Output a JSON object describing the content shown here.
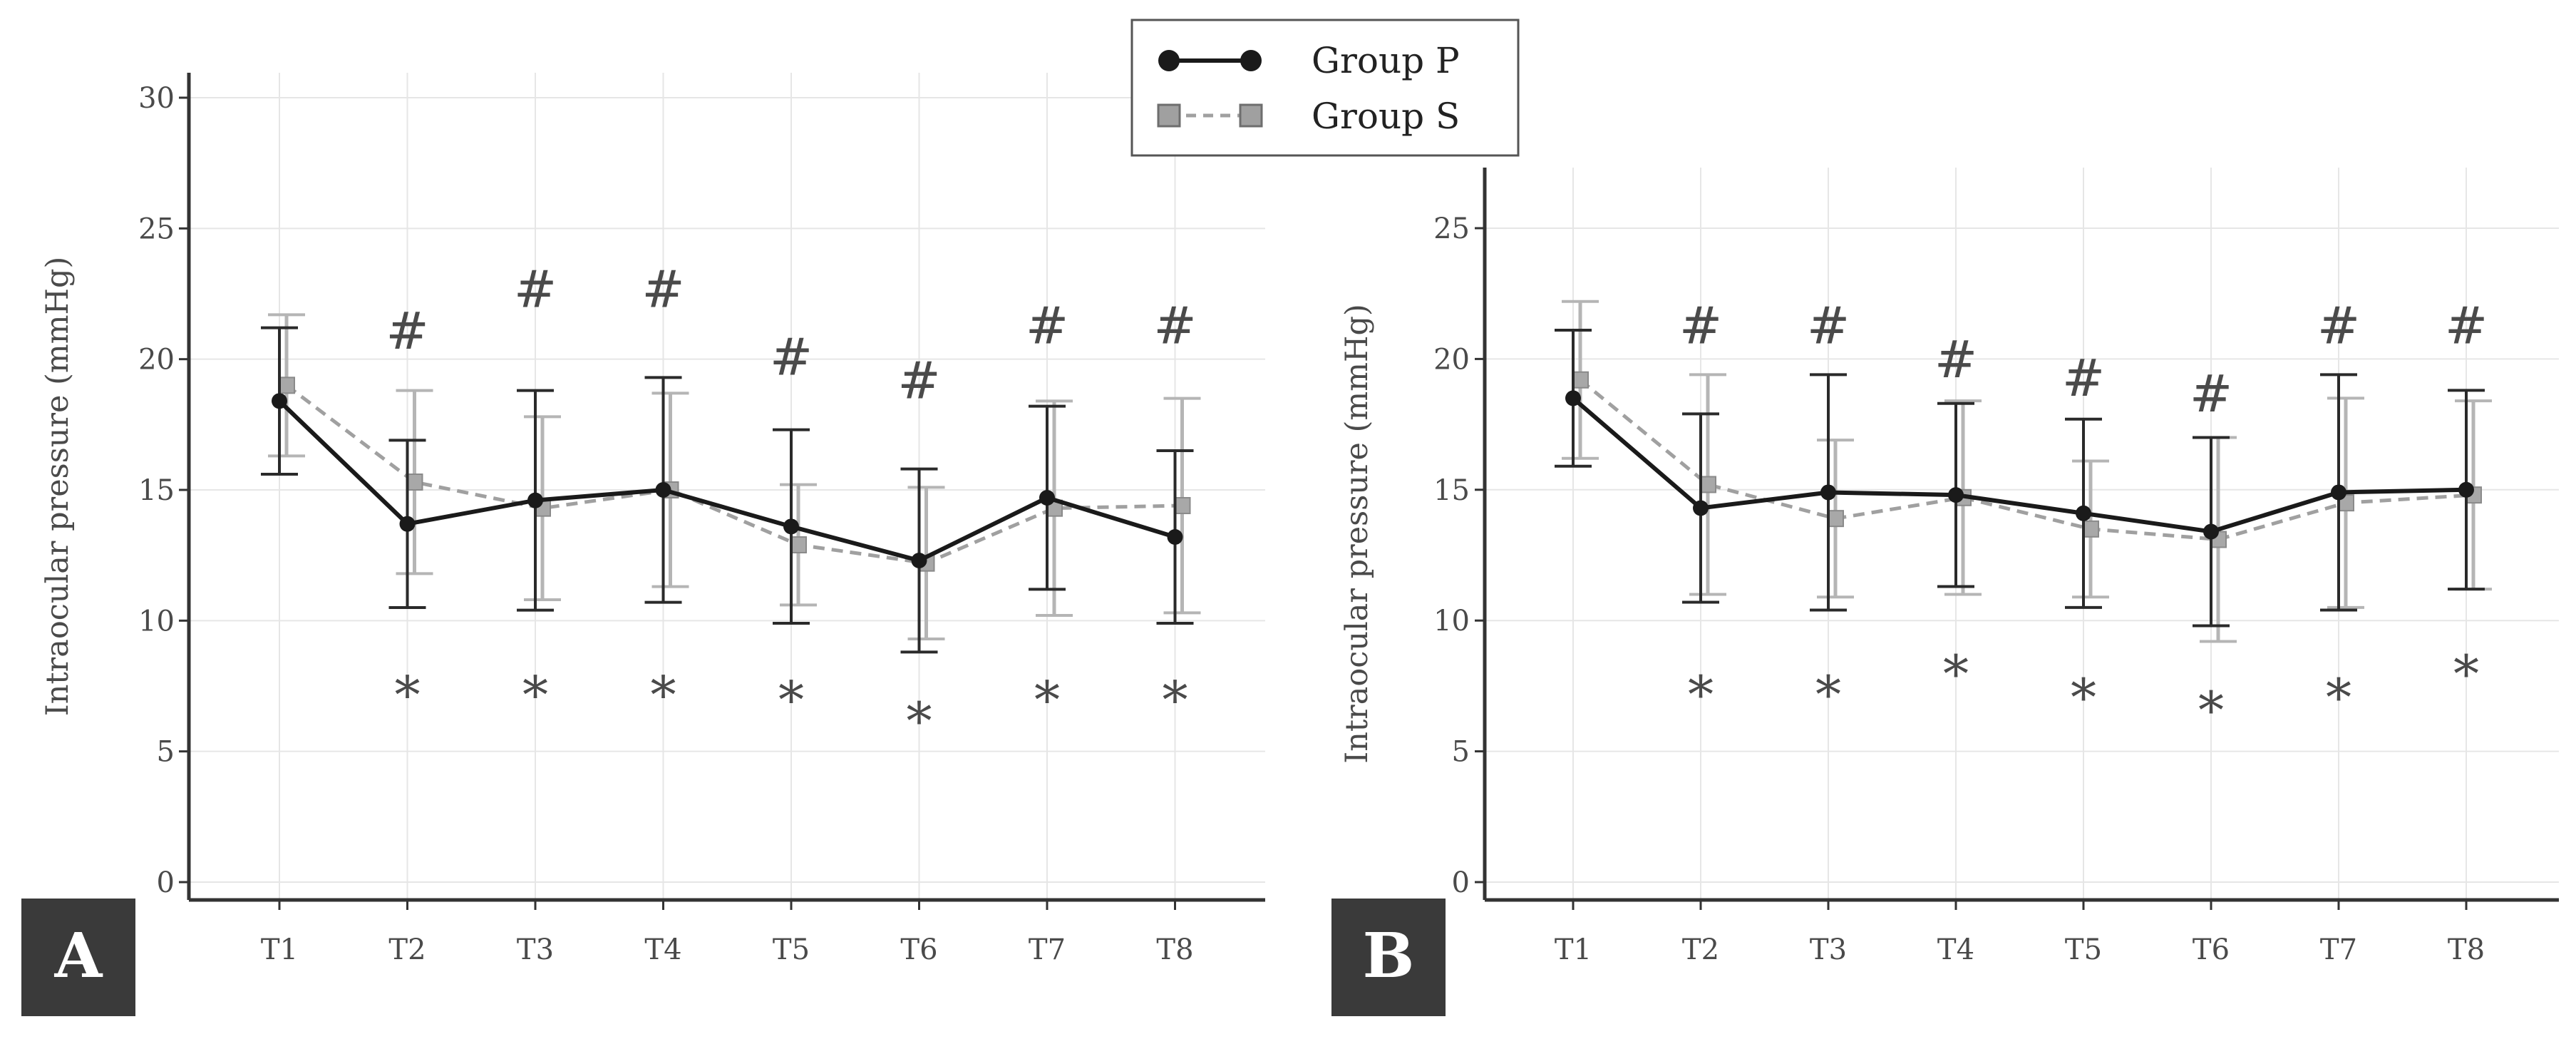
{
  "chart_data": [
    {
      "panel": "A",
      "type": "line",
      "ylabel": "Intraocular pressure (mmHg)",
      "xlabel": "",
      "categories": [
        "T1",
        "T2",
        "T3",
        "T4",
        "T5",
        "T6",
        "T7",
        "T8"
      ],
      "ylim": [
        0,
        30
      ],
      "yticks": [
        0,
        5,
        10,
        15,
        20,
        25,
        30
      ],
      "grid": true,
      "series": [
        {
          "name": "Group P",
          "values": [
            18.4,
            13.7,
            14.6,
            15.0,
            13.6,
            12.3,
            14.7,
            13.2
          ],
          "error": [
            2.8,
            3.2,
            4.2,
            4.3,
            3.7,
            3.5,
            3.5,
            3.3
          ],
          "color": "#1a1a1a",
          "style": "solid",
          "marker": "circle"
        },
        {
          "name": "Group S",
          "values": [
            19.0,
            15.3,
            14.3,
            15.0,
            12.9,
            12.2,
            14.3,
            14.4
          ],
          "error": [
            2.7,
            3.5,
            3.5,
            3.7,
            2.3,
            2.9,
            4.1,
            4.1
          ],
          "color": "#a0a0a0",
          "style": "dashed",
          "marker": "square"
        }
      ],
      "hash_marks": [
        "",
        "#",
        "#",
        "#",
        "#",
        "#",
        "#",
        "#"
      ],
      "hash_levels": [
        null,
        20.4,
        22.0,
        22.0,
        19.4,
        18.5,
        20.6,
        20.6
      ],
      "star_marks": [
        "",
        "*",
        "*",
        "*",
        "*",
        "*",
        "*",
        "*"
      ],
      "star_levels": [
        null,
        7.3,
        7.3,
        7.3,
        7.1,
        6.3,
        7.1,
        7.1
      ],
      "legend": "top-center"
    },
    {
      "panel": "B",
      "type": "line",
      "ylabel": "Intraocular pressure (mmHg)",
      "xlabel": "",
      "categories": [
        "T1",
        "T2",
        "T3",
        "T4",
        "T5",
        "T6",
        "T7",
        "T8"
      ],
      "ylim": [
        0,
        27
      ],
      "yticks": [
        0,
        5,
        10,
        15,
        20,
        25
      ],
      "grid": true,
      "series": [
        {
          "name": "Group P",
          "values": [
            18.5,
            14.3,
            14.9,
            14.8,
            14.1,
            13.4,
            14.9,
            15.0
          ],
          "error": [
            2.6,
            3.6,
            4.5,
            3.5,
            3.6,
            3.6,
            4.5,
            3.8
          ],
          "color": "#1a1a1a",
          "style": "solid",
          "marker": "circle"
        },
        {
          "name": "Group S",
          "values": [
            19.2,
            15.2,
            13.9,
            14.7,
            13.5,
            13.1,
            14.5,
            14.8
          ],
          "error": [
            3.0,
            4.2,
            3.0,
            3.7,
            2.6,
            3.9,
            4.0,
            3.6
          ],
          "color": "#a0a0a0",
          "style": "dashed",
          "marker": "square"
        }
      ],
      "hash_marks": [
        "",
        "#",
        "#",
        "#",
        "#",
        "#",
        "#",
        "#"
      ],
      "hash_levels": [
        null,
        20.6,
        20.6,
        19.3,
        18.6,
        18.0,
        20.6,
        20.6
      ],
      "star_marks": [
        "",
        "*",
        "*",
        "*",
        "*",
        "*",
        "*",
        "*"
      ],
      "star_levels": [
        null,
        7.3,
        7.3,
        8.1,
        7.2,
        6.7,
        7.2,
        8.1
      ],
      "legend": "none"
    }
  ],
  "legend": {
    "items": [
      {
        "label": "Group P",
        "style": "solid",
        "marker": "circle",
        "color": "#1a1a1a"
      },
      {
        "label": "Group S",
        "style": "dashed",
        "marker": "square",
        "color": "#a0a0a0"
      }
    ]
  },
  "panel_labels": {
    "a": "A",
    "b": "B"
  },
  "colors": {
    "panel_badge": "#3a3a3a",
    "axis": "#333333",
    "grid": "#e3e3e3"
  }
}
